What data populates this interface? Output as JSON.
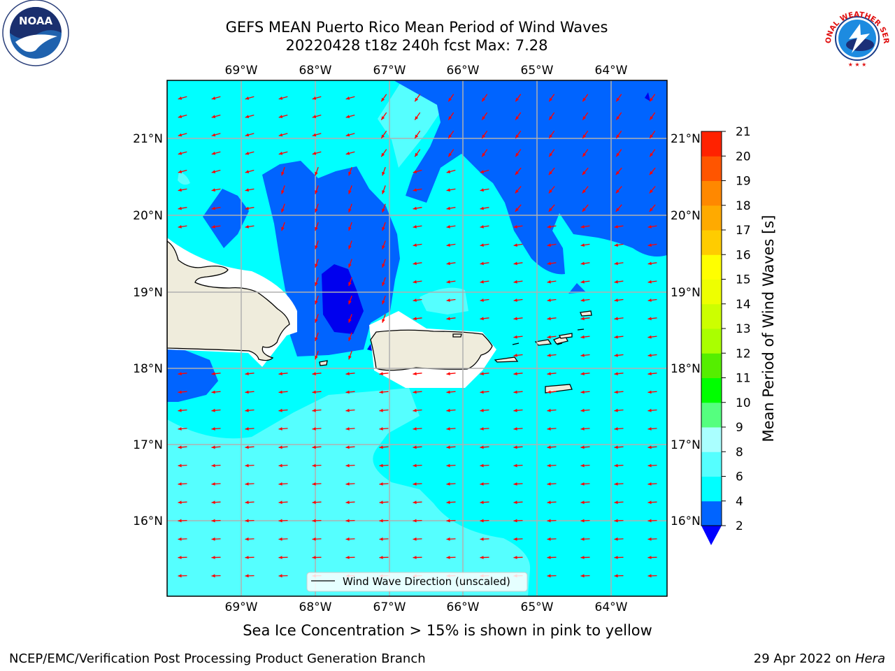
{
  "title": {
    "line1": "GEFS MEAN Puerto Rico Mean Period of Wind Waves",
    "line2": "20220428 t18z 240h fcst   Max: 7.28"
  },
  "map": {
    "lon_labels": [
      "69°W",
      "68°W",
      "67°W",
      "66°W",
      "65°W",
      "64°W"
    ],
    "lat_labels": [
      "21°N",
      "20°N",
      "19°N",
      "18°N",
      "17°N",
      "16°N"
    ],
    "legend_label": "Wind Wave Direction (unscaled)",
    "arrow_color": "#ff0000",
    "land_color": "#efecdc",
    "coast_color": "#000000"
  },
  "colorbar": {
    "title": "Mean Period of Wind Waves [s]",
    "labels": [
      "2",
      "4",
      "6",
      "8",
      "9",
      "10",
      "11",
      "12",
      "13",
      "14",
      "15",
      "16",
      "17",
      "18",
      "19",
      "20",
      "21"
    ],
    "colors": [
      "#0064ff",
      "#00ffff",
      "#55ffff",
      "#aaffff",
      "#55ff7f",
      "#00ff00",
      "#55ee00",
      "#aaff00",
      "#ccff00",
      "#eeff00",
      "#ffff00",
      "#ffcc00",
      "#ffaa00",
      "#ff8800",
      "#ff5500",
      "#ff2200"
    ],
    "under_color": "#0000ff",
    "over_color": "#ff0000"
  },
  "caption": "Sea Ice Concentration > 15% is shown in pink to yellow",
  "footer": {
    "left": "NCEP/EMC/Verification Post Processing Product Generation Branch",
    "date": "29 Apr 2022 on ",
    "host": "Hera"
  },
  "logos": {
    "noaa_text": "NOAA",
    "nws_text": "NATIONAL WEATHER SERVICE"
  }
}
